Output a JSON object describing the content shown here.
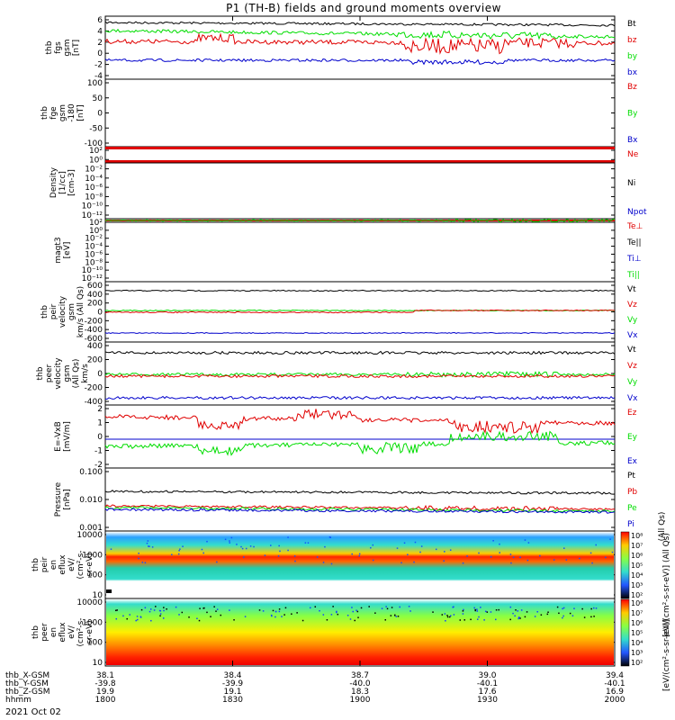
{
  "title": "P1 (TH-B) fields and ground moments overview",
  "date": "2021 Oct 02",
  "time_axis": {
    "rows": [
      {
        "label": "thb_X-GSM",
        "values": [
          "38.1",
          "38.4",
          "38.7",
          "39.0",
          "39.4"
        ]
      },
      {
        "label": "thb_Y-GSM",
        "values": [
          "-39.8",
          "-39.9",
          "-40.0",
          "-40.1",
          "-40.1"
        ]
      },
      {
        "label": "thb_Z-GSM",
        "values": [
          "19.9",
          "19.1",
          "18.3",
          "17.6",
          "16.9"
        ]
      },
      {
        "label": "hhmm",
        "values": [
          "1800",
          "1830",
          "1900",
          "1930",
          "2000"
        ]
      }
    ]
  },
  "colors": {
    "black": "#000000",
    "red": "#e00000",
    "green": "#00dd00",
    "blue": "#0000cc"
  },
  "panels": [
    {
      "id": "fgs",
      "ylabel": [
        "thb",
        "fgs",
        "gsm",
        "[nT]"
      ],
      "ticks": [
        "6",
        "4",
        "2",
        "0",
        "-2",
        "-4"
      ],
      "legend": [
        {
          "text": "Bt",
          "color": "#000000"
        },
        {
          "text": "bz",
          "color": "#e00000"
        },
        {
          "text": "by",
          "color": "#00dd00"
        },
        {
          "text": "bx",
          "color": "#0000cc"
        }
      ]
    },
    {
      "id": "fge",
      "ylabel": [
        "thb",
        "fge",
        "gsm",
        "-180",
        "[nT]"
      ],
      "ticks": [
        "100",
        "50",
        "0",
        "-50",
        "-100"
      ],
      "legend": [
        {
          "text": "Bz",
          "color": "#e00000"
        },
        {
          "text": "By",
          "color": "#00dd00"
        },
        {
          "text": "Bx",
          "color": "#0000cc"
        }
      ]
    },
    {
      "id": "density",
      "ylabel": [
        "Density",
        "[1/cc]",
        "[cm-3]"
      ],
      "ticks": [
        "10²",
        "10⁰",
        "10⁻²",
        "10⁻⁴",
        "10⁻⁶",
        "10⁻⁸",
        "10⁻¹⁰",
        "10⁻¹²"
      ],
      "legend": [
        {
          "text": "Ne",
          "color": "#e00000"
        },
        {
          "text": "Ni",
          "color": "#000000"
        },
        {
          "text": "Npot",
          "color": "#0000cc"
        }
      ]
    },
    {
      "id": "temp",
      "ylabel": [
        "magt3",
        "[eV]"
      ],
      "ticks": [
        "10²",
        "10⁰",
        "10⁻²",
        "10⁻⁴",
        "10⁻⁶",
        "10⁻⁸",
        "10⁻¹⁰",
        "10⁻¹²"
      ],
      "legend": [
        {
          "text": "Te⊥",
          "color": "#e00000"
        },
        {
          "text": "Te||",
          "color": "#000000"
        },
        {
          "text": "Ti⊥",
          "color": "#0000cc"
        },
        {
          "text": "Ti||",
          "color": "#00dd00"
        }
      ]
    },
    {
      "id": "peir_vel",
      "ylabel": [
        "thb",
        "peir",
        "velocity",
        "gsm",
        "km/s (All Qs)"
      ],
      "ticks": [
        "600",
        "400",
        "200",
        "0",
        "-200",
        "-400",
        "-600"
      ],
      "legend": [
        {
          "text": "Vt",
          "color": "#000000"
        },
        {
          "text": "Vz",
          "color": "#e00000"
        },
        {
          "text": "Vy",
          "color": "#00dd00"
        },
        {
          "text": "Vx",
          "color": "#0000cc"
        }
      ]
    },
    {
      "id": "peer_vel",
      "ylabel": [
        "thb",
        "peer",
        "velocity",
        "gsm",
        "(All Qs)",
        "km/s"
      ],
      "ticks": [
        "400",
        "200",
        "0",
        "-200",
        "-400"
      ],
      "legend": [
        {
          "text": "Vt",
          "color": "#000000"
        },
        {
          "text": "Vz",
          "color": "#e00000"
        },
        {
          "text": "Vy",
          "color": "#00dd00"
        },
        {
          "text": "Vx",
          "color": "#0000cc"
        }
      ]
    },
    {
      "id": "efield",
      "ylabel": [
        "E=-VxB",
        "[mV/m]"
      ],
      "ticks": [
        "2",
        "1",
        "0",
        "-1",
        "-2"
      ],
      "legend": [
        {
          "text": "Ez",
          "color": "#e00000"
        },
        {
          "text": "Ey",
          "color": "#00dd00"
        },
        {
          "text": "Ex",
          "color": "#0000cc"
        }
      ]
    },
    {
      "id": "pressure",
      "ylabel": [
        "Pressure",
        "[nPa]"
      ],
      "ticks": [
        "0.100",
        "0.010",
        "0.001"
      ],
      "legend": [
        {
          "text": "Pt",
          "color": "#000000"
        },
        {
          "text": "Pb",
          "color": "#e00000"
        },
        {
          "text": "Pe",
          "color": "#00dd00"
        },
        {
          "text": "Pi",
          "color": "#0000cc"
        }
      ],
      "side_note": "(All Qs)"
    },
    {
      "id": "peir_eflux",
      "ylabel": [
        "thb",
        "peir",
        "en",
        "eflux",
        "eV/",
        "(cm²-s-",
        "sr-eV)"
      ],
      "ticks": [
        "10000",
        "1000",
        "100",
        "10"
      ]
    },
    {
      "id": "peer_eflux",
      "ylabel": [
        "thb",
        "peer",
        "en",
        "eflux",
        "eV/",
        "(cm²-s-",
        "sr-eV)"
      ],
      "ticks": [
        "10000",
        "1000",
        "100",
        "10"
      ]
    }
  ],
  "colorbar": {
    "ticks": [
      "10⁸",
      "10⁷",
      "10⁶",
      "10⁵",
      "10⁴",
      "10³",
      "10²"
    ],
    "label_upper": "[eV/(cm²-s-sr-eV)] (All Qs)",
    "label_lower": "[eV/(cm²-s-sr-eV)]"
  },
  "chart_data": {
    "type": "line",
    "title": "P1 (TH-B) fields and ground moments overview",
    "time_range": [
      "1800",
      "2000"
    ],
    "series": [
      {
        "panel": "fgs",
        "name": "Bt",
        "approx_level": 5,
        "color": "#000000"
      },
      {
        "panel": "fgs",
        "name": "by",
        "approx_level": 3,
        "color": "#00dd00"
      },
      {
        "panel": "fgs",
        "name": "bz",
        "approx_level": 1,
        "color": "#e00000"
      },
      {
        "panel": "fgs",
        "name": "bx",
        "approx_level": -2.5,
        "color": "#0000cc"
      },
      {
        "panel": "peir_vel",
        "name": "Vt",
        "approx_level": 400,
        "color": "#000000"
      },
      {
        "panel": "peir_vel",
        "name": "Vy",
        "approx_level": 0,
        "color": "#00dd00"
      },
      {
        "panel": "peir_vel",
        "name": "Vx",
        "approx_level": -400,
        "color": "#0000cc"
      },
      {
        "panel": "peer_vel",
        "name": "Vt",
        "approx_level": 330,
        "color": "#000000"
      },
      {
        "panel": "peer_vel",
        "name": "Vz",
        "approx_level": 0,
        "color": "#e00000"
      },
      {
        "panel": "peer_vel",
        "name": "Vx",
        "approx_level": -330,
        "color": "#0000cc"
      },
      {
        "panel": "efield",
        "name": "Ez",
        "approx_level": 1.2,
        "color": "#e00000"
      },
      {
        "panel": "efield",
        "name": "Ex",
        "approx_level": 0,
        "color": "#0000cc"
      },
      {
        "panel": "efield",
        "name": "Ey",
        "approx_level": -0.5,
        "color": "#00dd00"
      },
      {
        "panel": "pressure",
        "name": "Pt",
        "approx_level": 0.015,
        "color": "#000000"
      },
      {
        "panel": "pressure",
        "name": "Pi",
        "approx_level": 0.006,
        "color": "#0000cc"
      }
    ]
  }
}
